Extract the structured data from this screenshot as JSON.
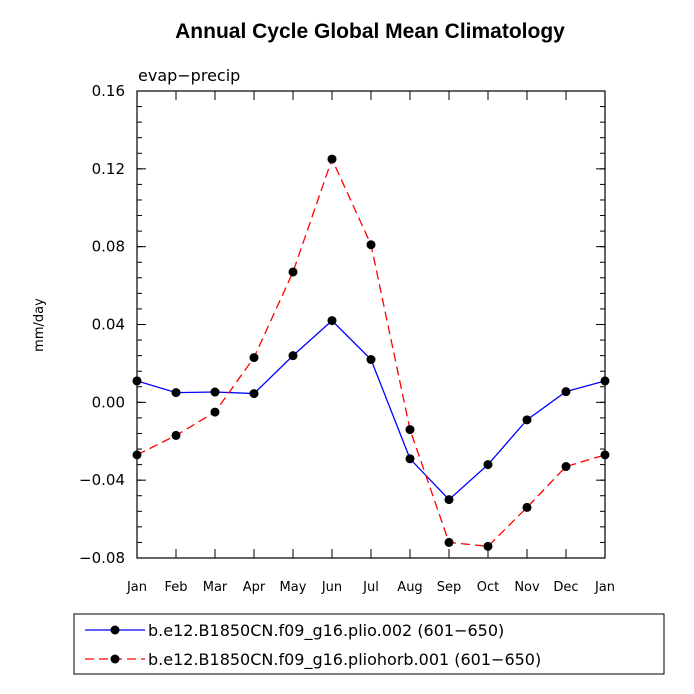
{
  "chart_data": {
    "type": "line",
    "title": "Annual Cycle Global Mean Climatology",
    "subtitle": "evap−precip",
    "xlabel": "",
    "ylabel": "mm/day",
    "categories": [
      "Jan",
      "Feb",
      "Mar",
      "Apr",
      "May",
      "Jun",
      "Jul",
      "Aug",
      "Sep",
      "Oct",
      "Nov",
      "Dec",
      "Jan"
    ],
    "ylim": [
      -0.08,
      0.16
    ],
    "yticks": [
      -0.08,
      -0.04,
      0.0,
      0.04,
      0.08,
      0.12,
      0.16
    ],
    "ytick_labels": [
      "−0.08",
      "−0.04",
      "0.00",
      "0.04",
      "0.08",
      "0.12",
      "0.16"
    ],
    "series": [
      {
        "name": "b.e12.B1850CN.f09_g16.plio.002 (601−650)",
        "color": "#0000ff",
        "dash": "solid",
        "values": [
          0.011,
          0.005,
          0.0053,
          0.0045,
          0.024,
          0.042,
          0.022,
          -0.029,
          -0.05,
          -0.032,
          -0.009,
          0.0055,
          0.011
        ]
      },
      {
        "name": "b.e12.B1850CN.f09_g16.pliohorb.001 (601−650)",
        "color": "#ff0000",
        "dash": "dashed",
        "values": [
          -0.027,
          -0.017,
          -0.005,
          0.023,
          0.067,
          0.125,
          0.081,
          -0.014,
          -0.072,
          -0.074,
          -0.054,
          -0.033,
          -0.027
        ]
      }
    ]
  }
}
